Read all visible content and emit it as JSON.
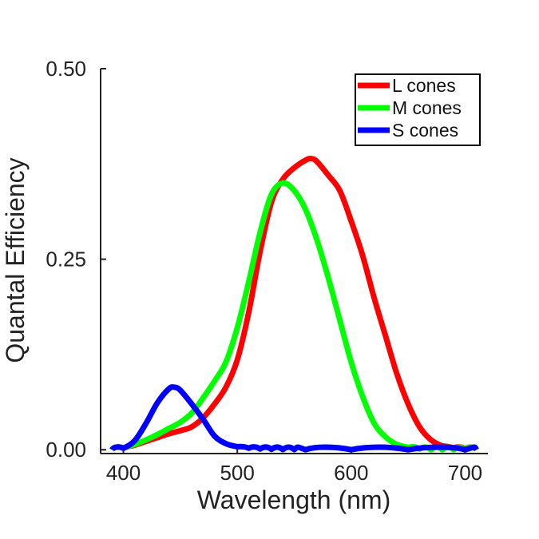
{
  "chart_data": {
    "type": "line",
    "title": "",
    "xlabel": "Wavelength (nm)",
    "ylabel": "Quantal Efficiency",
    "xlim": [
      380,
      720
    ],
    "ylim": [
      -0.005,
      0.5
    ],
    "xticks": [
      400,
      500,
      600,
      700
    ],
    "xtick_labels": [
      "400",
      "500",
      "600",
      "700"
    ],
    "yticks": [
      0,
      0.25,
      0.5
    ],
    "ytick_labels": [
      "0.00",
      "0.25",
      "0.50"
    ],
    "grid": false,
    "legend_position": "top-right",
    "series": [
      {
        "name": "L cones",
        "color": "#ff0000",
        "x": [
          390,
          400,
          410,
          420,
          430,
          440,
          450,
          460,
          470,
          480,
          490,
          500,
          510,
          520,
          530,
          540,
          550,
          560,
          565,
          570,
          580,
          590,
          600,
          610,
          620,
          630,
          640,
          650,
          660,
          670,
          680,
          690,
          700,
          710
        ],
        "y": [
          0,
          0.002,
          0.006,
          0.011,
          0.016,
          0.021,
          0.025,
          0.03,
          0.042,
          0.06,
          0.082,
          0.118,
          0.18,
          0.26,
          0.325,
          0.355,
          0.37,
          0.38,
          0.382,
          0.378,
          0.36,
          0.34,
          0.3,
          0.255,
          0.2,
          0.15,
          0.1,
          0.06,
          0.03,
          0.013,
          0.005,
          0.002,
          0.001,
          0
        ]
      },
      {
        "name": "M cones",
        "color": "#00ff00",
        "x": [
          390,
          400,
          410,
          420,
          430,
          440,
          450,
          460,
          470,
          480,
          490,
          500,
          510,
          520,
          530,
          540,
          550,
          560,
          570,
          580,
          590,
          600,
          610,
          620,
          630,
          640,
          650,
          660,
          670,
          680,
          690,
          700,
          710
        ],
        "y": [
          0,
          0.002,
          0.007,
          0.013,
          0.02,
          0.028,
          0.036,
          0.048,
          0.068,
          0.09,
          0.115,
          0.16,
          0.22,
          0.285,
          0.335,
          0.35,
          0.34,
          0.315,
          0.275,
          0.225,
          0.17,
          0.115,
          0.07,
          0.035,
          0.017,
          0.007,
          0.003,
          0.001,
          0,
          0,
          0,
          0,
          0
        ]
      },
      {
        "name": "S cones",
        "color": "#0000ff",
        "x": [
          390,
          400,
          410,
          420,
          430,
          440,
          445,
          450,
          460,
          470,
          480,
          490,
          500,
          510,
          520,
          530,
          540,
          550,
          560,
          600,
          650,
          700,
          710
        ],
        "y": [
          0,
          0.002,
          0.012,
          0.035,
          0.062,
          0.08,
          0.082,
          0.078,
          0.06,
          0.04,
          0.018,
          0.008,
          0.004,
          0.002,
          0.001,
          0.0005,
          0.0002,
          0.0001,
          0,
          0,
          0,
          0,
          0
        ]
      }
    ]
  }
}
